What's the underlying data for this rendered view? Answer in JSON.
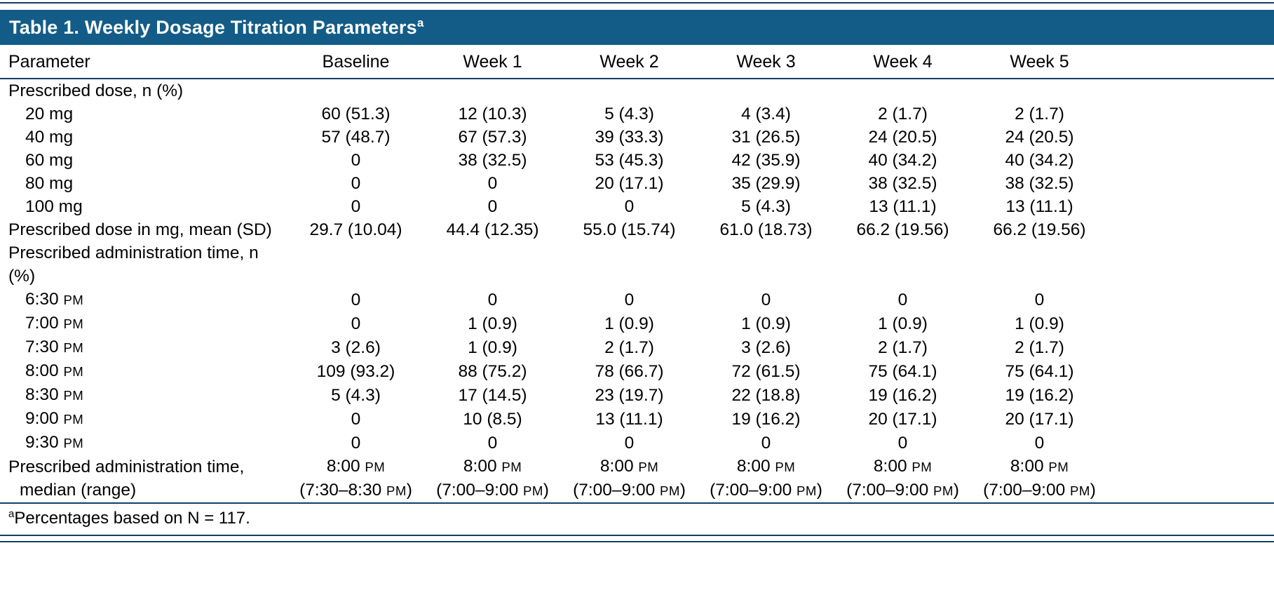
{
  "title": {
    "text": "Table 1. Weekly Dosage Titration Parameters",
    "superscript": "a"
  },
  "columns": [
    "Parameter",
    "Baseline",
    "Week 1",
    "Week 2",
    "Week 3",
    "Week 4",
    "Week 5"
  ],
  "rows": [
    {
      "type": "section",
      "indent": false,
      "label": "Prescribed dose, n (%)"
    },
    {
      "type": "data",
      "indent": true,
      "label": "20 mg",
      "values": [
        "60 (51.3)",
        "12 (10.3)",
        "5 (4.3)",
        "4 (3.4)",
        "2 (1.7)",
        "2 (1.7)"
      ]
    },
    {
      "type": "data",
      "indent": true,
      "label": "40 mg",
      "values": [
        "57 (48.7)",
        "67 (57.3)",
        "39 (33.3)",
        "31 (26.5)",
        "24 (20.5)",
        "24 (20.5)"
      ]
    },
    {
      "type": "data",
      "indent": true,
      "label": "60 mg",
      "values": [
        "0",
        "38 (32.5)",
        "53 (45.3)",
        "42 (35.9)",
        "40 (34.2)",
        "40 (34.2)"
      ]
    },
    {
      "type": "data",
      "indent": true,
      "label": "80 mg",
      "values": [
        "0",
        "0",
        "20 (17.1)",
        "35 (29.9)",
        "38 (32.5)",
        "38 (32.5)"
      ]
    },
    {
      "type": "data",
      "indent": true,
      "label": "100 mg",
      "values": [
        "0",
        "0",
        "0",
        "5 (4.3)",
        "13 (11.1)",
        "13 (11.1)"
      ]
    },
    {
      "type": "data",
      "indent": false,
      "label": "Prescribed dose in mg, mean (SD)",
      "values": [
        "29.7 (10.04)",
        "44.4 (12.35)",
        "55.0 (15.74)",
        "61.0 (18.73)",
        "66.2 (19.56)",
        "66.2 (19.56)"
      ]
    },
    {
      "type": "section",
      "indent": false,
      "label": "Prescribed administration time, n (%)"
    },
    {
      "type": "data",
      "indent": true,
      "label": "6:30 PM",
      "values": [
        "0",
        "0",
        "0",
        "0",
        "0",
        "0"
      ]
    },
    {
      "type": "data",
      "indent": true,
      "label": "7:00 PM",
      "values": [
        "0",
        "1 (0.9)",
        "1 (0.9)",
        "1 (0.9)",
        "1 (0.9)",
        "1 (0.9)"
      ]
    },
    {
      "type": "data",
      "indent": true,
      "label": "7:30 PM",
      "values": [
        "3 (2.6)",
        "1 (0.9)",
        "2 (1.7)",
        "3 (2.6)",
        "2 (1.7)",
        "2 (1.7)"
      ]
    },
    {
      "type": "data",
      "indent": true,
      "label": "8:00 PM",
      "values": [
        "109 (93.2)",
        "88 (75.2)",
        "78 (66.7)",
        "72 (61.5)",
        "75 (64.1)",
        "75 (64.1)"
      ]
    },
    {
      "type": "data",
      "indent": true,
      "label": "8:30 PM",
      "values": [
        "5 (4.3)",
        "17 (14.5)",
        "23 (19.7)",
        "22 (18.8)",
        "19 (16.2)",
        "19 (16.2)"
      ]
    },
    {
      "type": "data",
      "indent": true,
      "label": "9:00 PM",
      "values": [
        "0",
        "10 (8.5)",
        "13 (11.1)",
        "19 (16.2)",
        "20 (17.1)",
        "20 (17.1)"
      ]
    },
    {
      "type": "data",
      "indent": true,
      "label": "9:30 PM",
      "values": [
        "0",
        "0",
        "0",
        "0",
        "0",
        "0"
      ]
    },
    {
      "type": "data",
      "indent": false,
      "label": "Prescribed administration time,\nmedian (range)",
      "values": [
        "8:00 PM\n(7:30–8:30 PM)",
        "8:00 PM\n(7:00–9:00 PM)",
        "8:00 PM\n(7:00–9:00 PM)",
        "8:00 PM\n(7:00–9:00 PM)",
        "8:00 PM\n(7:00–9:00 PM)",
        "8:00 PM\n(7:00–9:00 PM)"
      ]
    }
  ],
  "footnote": {
    "superscript": "a",
    "text": "Percentages based on N = 117."
  },
  "colors": {
    "header_bg": "#135c87",
    "rule": "#123f66",
    "title_text": "#ffffff",
    "body_text": "#000000"
  }
}
